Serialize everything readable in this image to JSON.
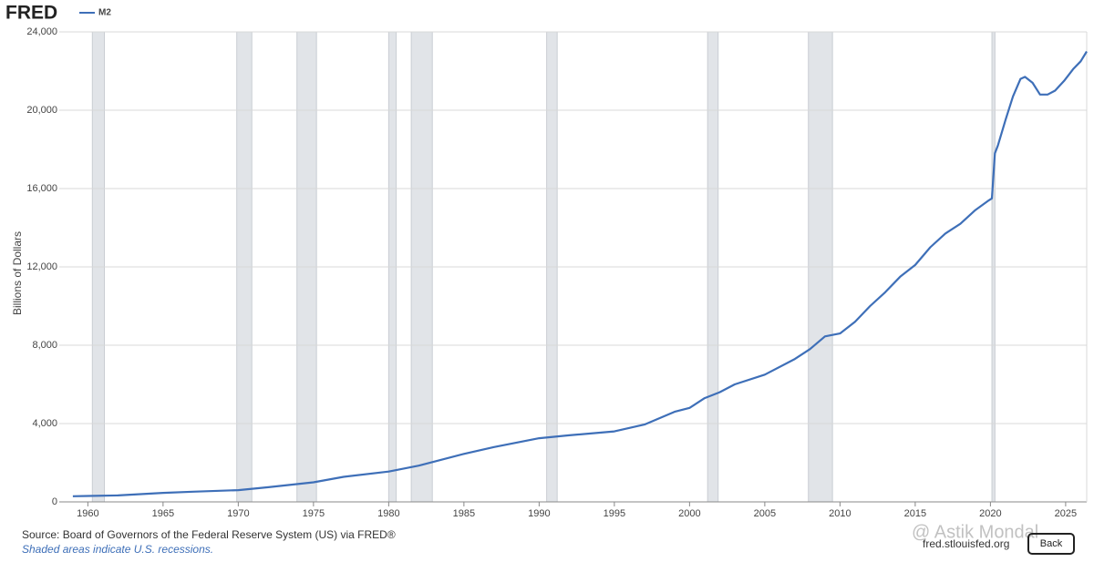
{
  "chart_data": {
    "type": "line",
    "logo": "FRED",
    "y_label": "Billions of Dollars",
    "source": "Source: Board of Governors of the Federal Reserve System (US) via FRED®",
    "note": "Shaded areas indicate U.S. recessions.",
    "site": "fred.stlouisfed.org",
    "watermark": "@ Astik Mondal",
    "button": "Back",
    "xlim": [
      1958.1,
      2026.4
    ],
    "ylim": [
      0,
      24000
    ],
    "xticks": [
      1960,
      1965,
      1970,
      1975,
      1980,
      1985,
      1990,
      1995,
      2000,
      2005,
      2010,
      2015,
      2020,
      2025
    ],
    "yticks": [
      0,
      {
        "value": 4000,
        "label": "4,000"
      },
      {
        "value": 8000,
        "label": "8,000"
      },
      {
        "value": 12000,
        "label": "12,000"
      },
      {
        "value": 16000,
        "label": "16,000"
      },
      {
        "value": 20000,
        "label": "20,000"
      },
      {
        "value": 24000,
        "label": "24,000"
      }
    ],
    "grid": true,
    "recession_color": "#e1e4e8",
    "recessions": [
      [
        1960.3,
        1961.1
      ],
      [
        1969.9,
        1970.9
      ],
      [
        1973.9,
        1975.2
      ],
      [
        1980.0,
        1980.5
      ],
      [
        1981.5,
        1982.9
      ],
      [
        1990.5,
        1991.2
      ],
      [
        2001.2,
        2001.9
      ],
      [
        2007.9,
        2009.5
      ],
      [
        2020.1,
        2020.3
      ]
    ],
    "series": [
      {
        "name": "M2",
        "color": "#3e6fb8",
        "x": [
          1959,
          1960,
          1962,
          1965,
          1967,
          1970,
          1972,
          1975,
          1977,
          1980,
          1982,
          1985,
          1987,
          1990,
          1992,
          1995,
          1997,
          1999,
          2000,
          2001,
          2002,
          2003,
          2005,
          2007,
          2008,
          2009,
          2010,
          2011,
          2012,
          2013,
          2014,
          2015,
          2016,
          2017,
          2018,
          2019,
          2019.9,
          2020.1,
          2020.3,
          2020.5,
          2021,
          2021.5,
          2022.0,
          2022.3,
          2022.8,
          2023.3,
          2023.8,
          2024.3,
          2024.9,
          2025.5,
          2026.0,
          2026.4
        ],
        "values": [
          290,
          300,
          330,
          460,
          520,
          600,
          750,
          1000,
          1280,
          1550,
          1850,
          2450,
          2800,
          3250,
          3400,
          3600,
          3950,
          4600,
          4800,
          5300,
          5600,
          6000,
          6500,
          7300,
          7800,
          8450,
          8600,
          9200,
          10000,
          10700,
          11500,
          12100,
          13000,
          13700,
          14200,
          14900,
          15400,
          15500,
          17800,
          18200,
          19500,
          20700,
          21600,
          21700,
          21400,
          20800,
          20800,
          21000,
          21500,
          22100,
          22500,
          23000
        ]
      }
    ]
  }
}
